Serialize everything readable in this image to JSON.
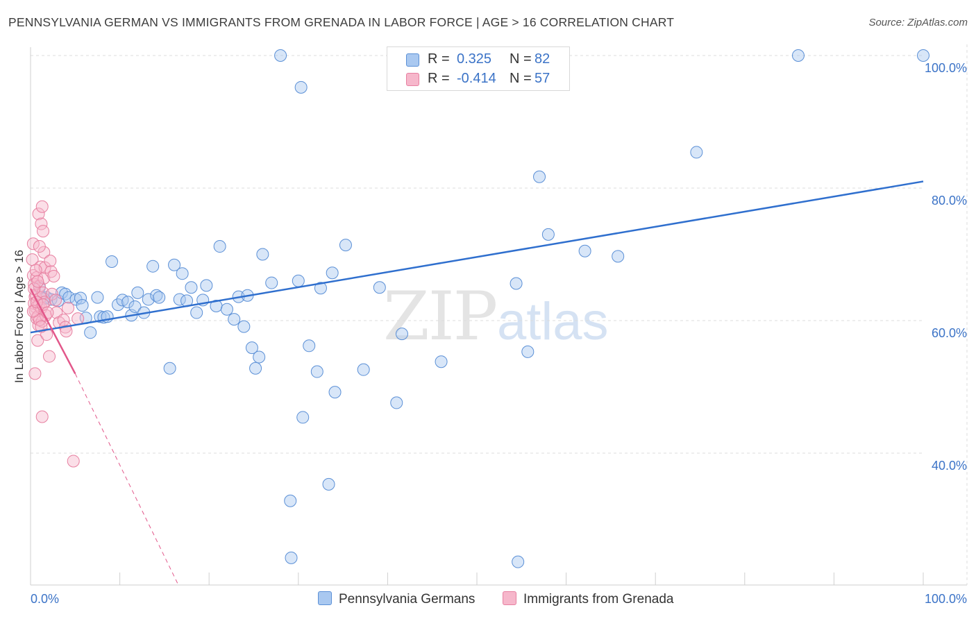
{
  "title": "PENNSYLVANIA GERMAN VS IMMIGRANTS FROM GRENADA IN LABOR FORCE | AGE > 16 CORRELATION CHART",
  "source": "Source: ZipAtlas.com",
  "watermark": {
    "zip": "ZIP",
    "atlas": "atlas"
  },
  "stats_legend": [
    {
      "r_label": "R =",
      "r_value": "0.325",
      "n_label": "N =",
      "n_value": "82",
      "color": "#a9c8f0"
    },
    {
      "r_label": "R =",
      "r_value": "-0.414",
      "n_label": "N =",
      "n_value": "57",
      "color": "#f6b7cb"
    }
  ],
  "colors": {
    "blue_fill": "#a9c8f0",
    "blue_stroke": "#5a8fd6",
    "blue_line": "#2f6fce",
    "pink_fill": "#f6b7cb",
    "pink_stroke": "#e77fa0",
    "pink_line": "#e2578a",
    "tick_label": "#3b73c7"
  },
  "chart_data": {
    "type": "scatter",
    "title": "PENNSYLVANIA GERMAN VS IMMIGRANTS FROM GRENADA IN LABOR FORCE | AGE > 16 CORRELATION CHART",
    "xlabel": "",
    "ylabel": "In Labor Force | Age > 16",
    "xlim": [
      0,
      100
    ],
    "ylim": [
      20,
      102
    ],
    "x_tick_labels": [
      {
        "value": 0,
        "label": "0.0%"
      },
      {
        "value": 100,
        "label": "100.0%"
      }
    ],
    "y_ticks": [
      {
        "value": 100,
        "label": "100.0%"
      },
      {
        "value": 80,
        "label": "80.0%"
      },
      {
        "value": 60,
        "label": "60.0%"
      },
      {
        "value": 40,
        "label": "40.0%"
      }
    ],
    "grid": true,
    "legend_position": "bottom",
    "series": [
      {
        "name": "Pennsylvania Germans",
        "color": "#a9c8f0",
        "trend": {
          "x": [
            0,
            100
          ],
          "y": [
            58.2,
            81.0
          ],
          "style": "solid"
        },
        "points": [
          [
            1.0,
            65.0
          ],
          [
            1.8,
            63.5
          ],
          [
            2.3,
            63.2
          ],
          [
            3.1,
            63.0
          ],
          [
            3.5,
            64.2
          ],
          [
            3.9,
            64.0
          ],
          [
            4.3,
            63.5
          ],
          [
            5.1,
            63.2
          ],
          [
            5.6,
            63.4
          ],
          [
            5.8,
            62.3
          ],
          [
            6.2,
            60.4
          ],
          [
            6.7,
            58.2
          ],
          [
            7.5,
            63.5
          ],
          [
            7.8,
            60.6
          ],
          [
            8.2,
            60.5
          ],
          [
            8.6,
            60.6
          ],
          [
            9.1,
            68.9
          ],
          [
            9.8,
            62.4
          ],
          [
            10.3,
            63.1
          ],
          [
            10.9,
            62.8
          ],
          [
            11.3,
            60.8
          ],
          [
            11.7,
            62.1
          ],
          [
            12.0,
            64.2
          ],
          [
            12.7,
            61.2
          ],
          [
            13.2,
            63.2
          ],
          [
            13.7,
            68.2
          ],
          [
            14.1,
            63.8
          ],
          [
            14.4,
            63.5
          ],
          [
            15.6,
            52.8
          ],
          [
            16.1,
            68.4
          ],
          [
            16.7,
            63.2
          ],
          [
            17.0,
            67.1
          ],
          [
            17.5,
            63.0
          ],
          [
            18.0,
            65.0
          ],
          [
            18.6,
            61.2
          ],
          [
            19.3,
            63.1
          ],
          [
            19.7,
            65.3
          ],
          [
            20.8,
            62.2
          ],
          [
            21.2,
            71.2
          ],
          [
            22.0,
            61.7
          ],
          [
            22.8,
            60.2
          ],
          [
            23.3,
            63.6
          ],
          [
            23.9,
            59.1
          ],
          [
            24.3,
            63.8
          ],
          [
            24.8,
            55.9
          ],
          [
            25.2,
            52.8
          ],
          [
            25.6,
            54.5
          ],
          [
            26.0,
            70.0
          ],
          [
            27.0,
            65.7
          ],
          [
            28.0,
            100.0
          ],
          [
            29.1,
            32.8
          ],
          [
            29.2,
            24.2
          ],
          [
            30.0,
            66.0
          ],
          [
            30.3,
            95.2
          ],
          [
            30.5,
            45.4
          ],
          [
            31.2,
            56.2
          ],
          [
            32.1,
            52.3
          ],
          [
            32.5,
            64.9
          ],
          [
            33.4,
            35.3
          ],
          [
            33.8,
            67.2
          ],
          [
            34.1,
            49.2
          ],
          [
            35.3,
            71.4
          ],
          [
            37.3,
            52.6
          ],
          [
            39.1,
            65.0
          ],
          [
            41.0,
            47.6
          ],
          [
            41.6,
            58.0
          ],
          [
            43.5,
            100.0
          ],
          [
            46.0,
            53.8
          ],
          [
            47.2,
            95.8
          ],
          [
            47.6,
            100.0
          ],
          [
            50.0,
            100.0
          ],
          [
            54.4,
            65.6
          ],
          [
            54.6,
            23.6
          ],
          [
            55.7,
            55.3
          ],
          [
            57.0,
            81.7
          ],
          [
            58.0,
            73.0
          ],
          [
            62.1,
            70.5
          ],
          [
            65.8,
            69.7
          ],
          [
            74.6,
            85.4
          ],
          [
            86.0,
            100.0
          ],
          [
            100.0,
            100.0
          ],
          [
            1.5,
            63.3
          ]
        ]
      },
      {
        "name": "Immigrants from Grenada",
        "color": "#f6b7cb",
        "trend": {
          "x": [
            0,
            5
          ],
          "y": [
            64.8,
            52.0
          ],
          "extended_x": [
            5,
            16.6
          ],
          "extended_y": [
            52.0,
            20.0
          ],
          "style": "solid-then-dashed"
        },
        "points": [
          [
            0.3,
            66.8
          ],
          [
            0.4,
            65.5
          ],
          [
            0.5,
            63.6
          ],
          [
            0.6,
            62.0
          ],
          [
            0.7,
            60.3
          ],
          [
            0.8,
            57.0
          ],
          [
            0.9,
            59.3
          ],
          [
            0.2,
            69.2
          ],
          [
            0.3,
            71.6
          ],
          [
            0.4,
            62.6
          ],
          [
            0.5,
            61.5
          ],
          [
            0.6,
            63.9
          ],
          [
            0.7,
            66.5
          ],
          [
            0.8,
            60.6
          ],
          [
            0.9,
            62.3
          ],
          [
            1.0,
            65.2
          ],
          [
            1.1,
            63.5
          ],
          [
            1.2,
            61.9
          ],
          [
            1.3,
            59.9
          ],
          [
            1.4,
            64.2
          ],
          [
            1.5,
            66.4
          ],
          [
            1.6,
            62.8
          ],
          [
            1.7,
            60.8
          ],
          [
            1.8,
            57.9
          ],
          [
            0.9,
            76.1
          ],
          [
            1.2,
            74.6
          ],
          [
            1.3,
            77.2
          ],
          [
            1.4,
            73.5
          ],
          [
            1.5,
            70.3
          ],
          [
            1.0,
            71.2
          ],
          [
            1.1,
            68.1
          ],
          [
            1.6,
            68.0
          ],
          [
            0.5,
            52.0
          ],
          [
            1.3,
            45.5
          ],
          [
            2.2,
            69.0
          ],
          [
            2.3,
            67.4
          ],
          [
            2.4,
            64.0
          ],
          [
            2.6,
            66.7
          ],
          [
            2.8,
            63.1
          ],
          [
            2.9,
            61.2
          ],
          [
            2.1,
            54.6
          ],
          [
            3.2,
            59.7
          ],
          [
            3.7,
            60.1
          ],
          [
            3.9,
            59.0
          ],
          [
            4.0,
            58.4
          ],
          [
            4.2,
            61.9
          ],
          [
            5.3,
            60.3
          ],
          [
            4.8,
            38.8
          ],
          [
            0.4,
            64.8
          ],
          [
            0.6,
            67.6
          ],
          [
            0.8,
            65.9
          ],
          [
            1.0,
            60.1
          ],
          [
            1.2,
            59.1
          ],
          [
            0.3,
            61.4
          ],
          [
            0.7,
            62.8
          ],
          [
            1.4,
            62.4
          ],
          [
            1.9,
            61.2
          ]
        ]
      }
    ]
  },
  "bottom_legend": [
    {
      "label": "Pennsylvania Germans",
      "color": "#a9c8f0"
    },
    {
      "label": "Immigrants from Grenada",
      "color": "#f6b7cb"
    }
  ]
}
